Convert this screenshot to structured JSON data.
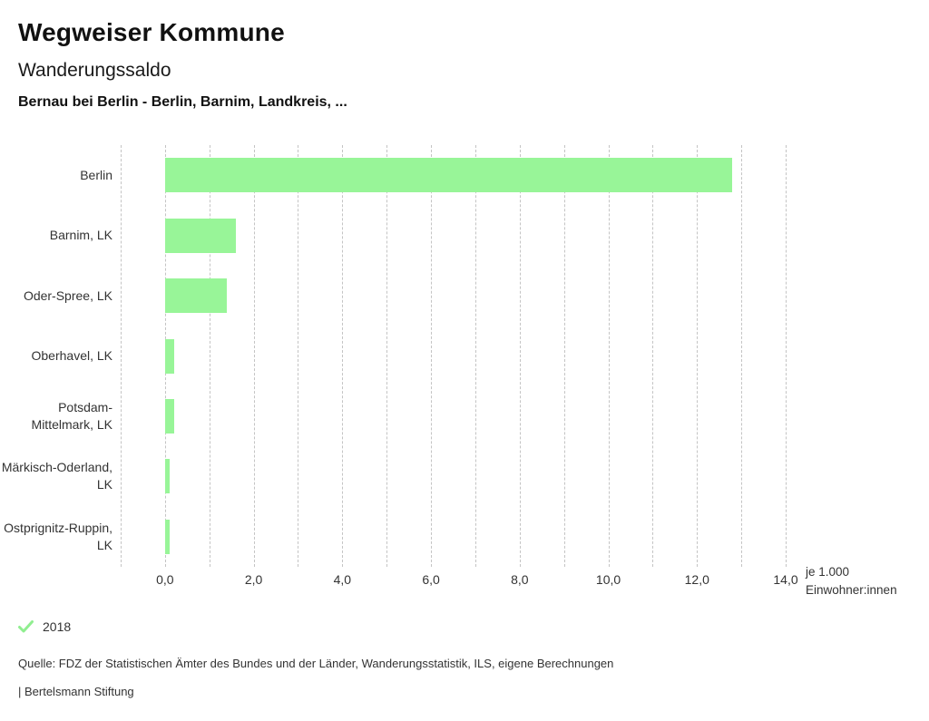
{
  "header": {
    "app_title": "Wegweiser Kommune",
    "chart_title": "Wanderungssaldo",
    "subtitle": "Bernau bei Berlin - Berlin, Barnim, Landkreis, ..."
  },
  "chart_data": {
    "type": "bar",
    "orientation": "horizontal",
    "title": "Wanderungssaldo",
    "subtitle": "Bernau bei Berlin - Berlin, Barnim, Landkreis, ...",
    "categories": [
      "Berlin",
      "Barnim, LK",
      "Oder-Spree, LK",
      "Oberhavel, LK",
      "Potsdam-Mittelmark, LK",
      "Märkisch-Oderland, LK",
      "Ostprignitz-Ruppin, LK"
    ],
    "series": [
      {
        "name": "2018",
        "values": [
          12.8,
          1.6,
          1.4,
          0.2,
          0.2,
          0.1,
          0.1
        ]
      }
    ],
    "xlim": [
      -1,
      14
    ],
    "gridline_step": 1,
    "grid": true,
    "x_ticks": [
      {
        "value": 0,
        "label": "0,0"
      },
      {
        "value": 2,
        "label": "2,0"
      },
      {
        "value": 4,
        "label": "4,0"
      },
      {
        "value": 6,
        "label": "6,0"
      },
      {
        "value": 8,
        "label": "8,0"
      },
      {
        "value": 10,
        "label": "10,0"
      },
      {
        "value": 12,
        "label": "12,0"
      },
      {
        "value": 14,
        "label": "14,0"
      }
    ],
    "xlabel": "je 1.000 Einwohner:innen",
    "ylabel": "",
    "legend_position": "bottom-left",
    "bar_color": "#98f598"
  },
  "axis": {
    "unit_line1": "je 1.000",
    "unit_line2": "Einwohner:innen"
  },
  "legend": {
    "items": [
      {
        "label": "2018",
        "checked": true
      }
    ]
  },
  "footer": {
    "source": "Quelle: FDZ der Statistischen Ämter des Bundes und der Länder, Wanderungsstatistik, ILS, eigene Berechnungen",
    "attribution": "| Bertelsmann Stiftung"
  },
  "colors": {
    "bar": "#98f598",
    "legend_check": "#90ee90",
    "grid": "#c4c4c4",
    "text_primary": "#111111",
    "text_secondary": "#333333"
  }
}
